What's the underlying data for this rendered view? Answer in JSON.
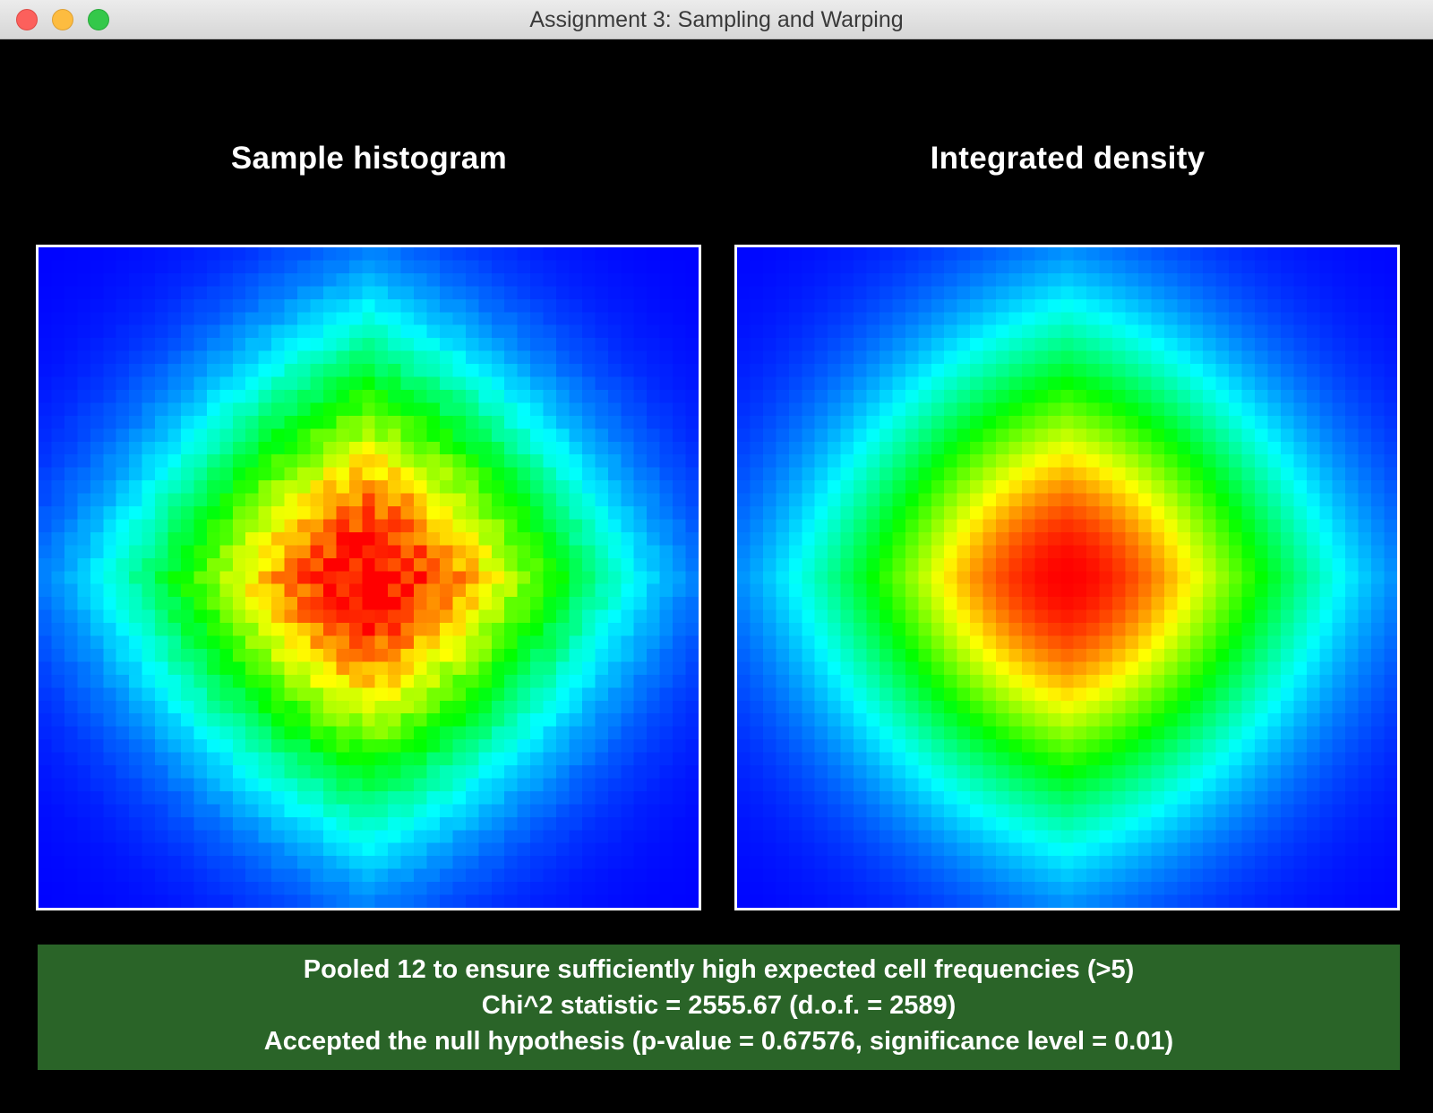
{
  "window": {
    "title": "Assignment 3: Sampling and Warping"
  },
  "panels": [
    {
      "title": "Sample histogram",
      "kind": "sampled",
      "grid_resolution": 51
    },
    {
      "title": "Integrated density",
      "kind": "analytic",
      "grid_resolution": 51
    }
  ],
  "colormap": [
    "#0000ff",
    "#00ffff",
    "#00ff00",
    "#ffff00",
    "#ff0000"
  ],
  "test_result": {
    "line1": "Pooled 12 to ensure sufficiently high expected cell frequencies (>5)",
    "line2": "Chi^2 statistic = 2555.67 (d.o.f. = 2589)",
    "line3": "Accepted the null hypothesis (p-value = 0.67576, significance level = 0.01)",
    "status_color": "#2a6428"
  }
}
